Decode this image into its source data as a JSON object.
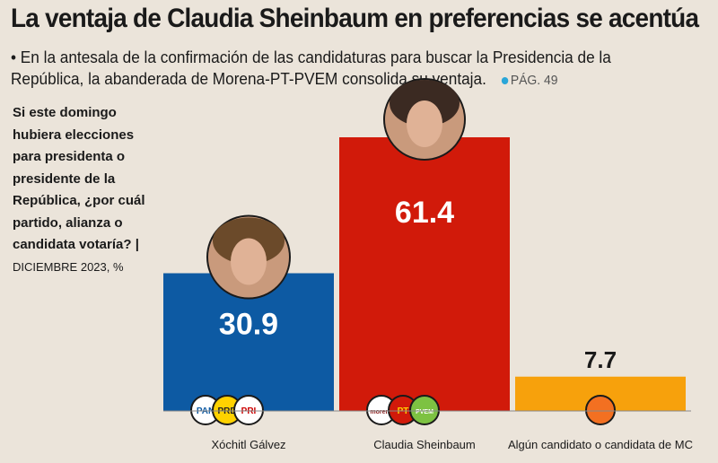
{
  "header": {
    "title": "La ventaja de Claudia Sheinbaum en preferencias se acentúa",
    "subtitle": "• En la antesala de la confirmación de las candidaturas para buscar la Presidencia de la República, la abanderada de Morena-PT-PVEM consolida su ventaja.",
    "page_ref": "PÁG. 49"
  },
  "question": {
    "text": "Si este domingo hubiera elecciones para presidenta o presidente de la República, ¿por cuál partido, alianza o candidata votaría? |",
    "date": "DICIEMBRE 2023, %"
  },
  "chart_data": {
    "type": "bar",
    "title": "La ventaja de Claudia Sheinbaum en preferencias se acentúa",
    "categories": [
      "Xóchitl Gálvez",
      "Claudia Sheinbaum",
      "Algún candidato o candidata de MC"
    ],
    "values": [
      30.9,
      61.4,
      7.7
    ],
    "value_labels": [
      "30.9",
      "61.4",
      "7.7"
    ],
    "colors": [
      "#0d5aa3",
      "#d11a0a",
      "#f7a10c"
    ],
    "party_logos": [
      [
        "PAN",
        "PRD",
        "PRI"
      ],
      [
        "morena",
        "PT",
        "PVEM"
      ],
      [
        "MC"
      ]
    ],
    "ylim": [
      0,
      61.4
    ],
    "xlabel": "",
    "ylabel": "%"
  }
}
